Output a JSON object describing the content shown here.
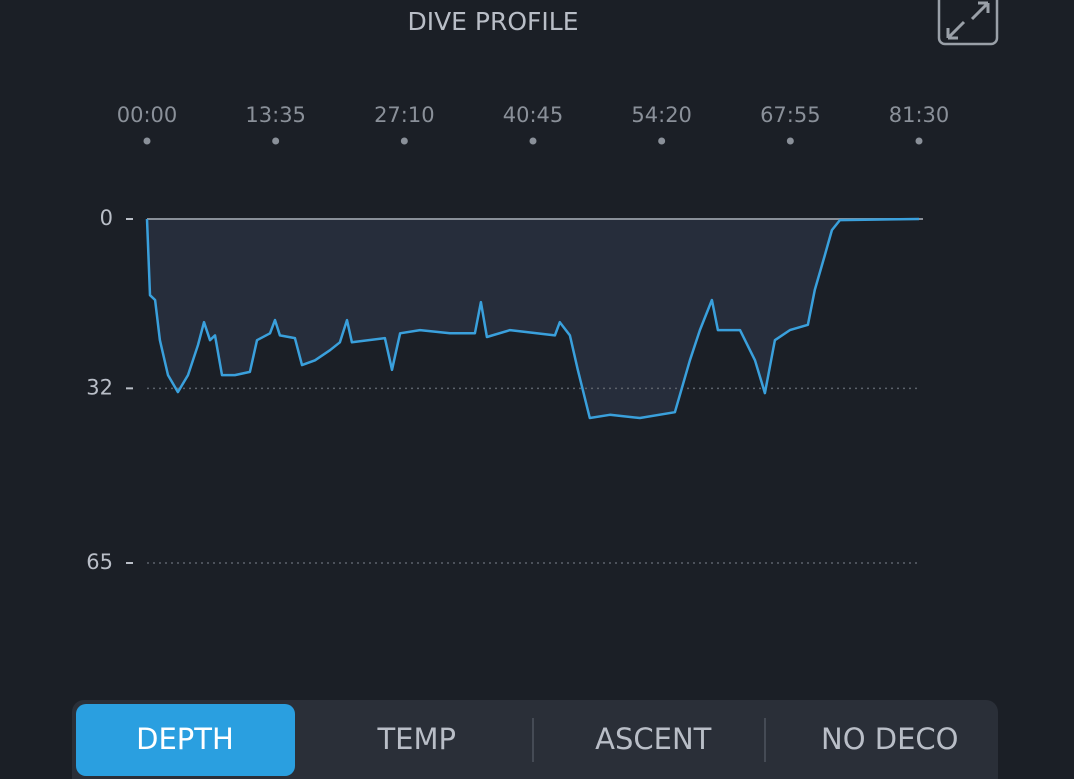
{
  "chart_data": {
    "type": "area",
    "title": "DIVE PROFILE",
    "x": [
      0,
      19,
      51,
      82,
      133,
      196,
      260,
      323,
      361,
      399,
      431,
      475,
      557,
      652,
      697,
      779,
      811,
      842,
      937,
      982,
      1064,
      1159,
      1222,
      1267,
      1298,
      1507,
      1552,
      1603,
      1729,
      1919,
      2077,
      2115,
      2153,
      2299,
      2584,
      2615,
      2679,
      2729,
      2805,
      2932,
      3122,
      3344,
      3439,
      3502,
      3578,
      3616,
      3756,
      3851,
      3914,
      3977,
      4072,
      4186,
      4230,
      4294,
      4338,
      4389,
      4890
    ],
    "values": [
      0,
      14.4,
      15.3,
      22.9,
      29.5,
      32.7,
      29.5,
      23.8,
      19.5,
      22.9,
      22,
      29.5,
      29.5,
      28.9,
      22.9,
      21.6,
      19.1,
      22,
      22.5,
      27.6,
      26.7,
      24.8,
      23.3,
      19.1,
      23.3,
      22.5,
      28.5,
      21.6,
      21,
      21.6,
      21.6,
      15.7,
      22.3,
      21,
      22,
      19.5,
      22,
      28.5,
      37.6,
      37,
      37.6,
      36.5,
      26.7,
      21,
      15.3,
      21,
      21,
      26.7,
      32.9,
      22.9,
      21,
      20,
      13.4,
      6.8,
      2.1,
      0.2,
      0
    ],
    "color": "#3aa0dc",
    "xlim": [
      0,
      4890
    ],
    "xticks": [
      {
        "value": 0,
        "label": "00:00"
      },
      {
        "value": 815,
        "label": "13:35"
      },
      {
        "value": 1630,
        "label": "27:10"
      },
      {
        "value": 2445,
        "label": "40:45"
      },
      {
        "value": 3260,
        "label": "54:20"
      },
      {
        "value": 4075,
        "label": "67:55"
      },
      {
        "value": 4890,
        "label": "81:30"
      }
    ],
    "ylim": [
      0,
      65
    ],
    "yticks": [
      0,
      32,
      65
    ],
    "y_inverted": true,
    "grid": true
  },
  "tabs": [
    {
      "label": "DEPTH",
      "active": true
    },
    {
      "label": "TEMP",
      "active": false
    },
    {
      "label": "ASCENT",
      "active": false
    },
    {
      "label": "NO DECO",
      "active": false
    }
  ]
}
